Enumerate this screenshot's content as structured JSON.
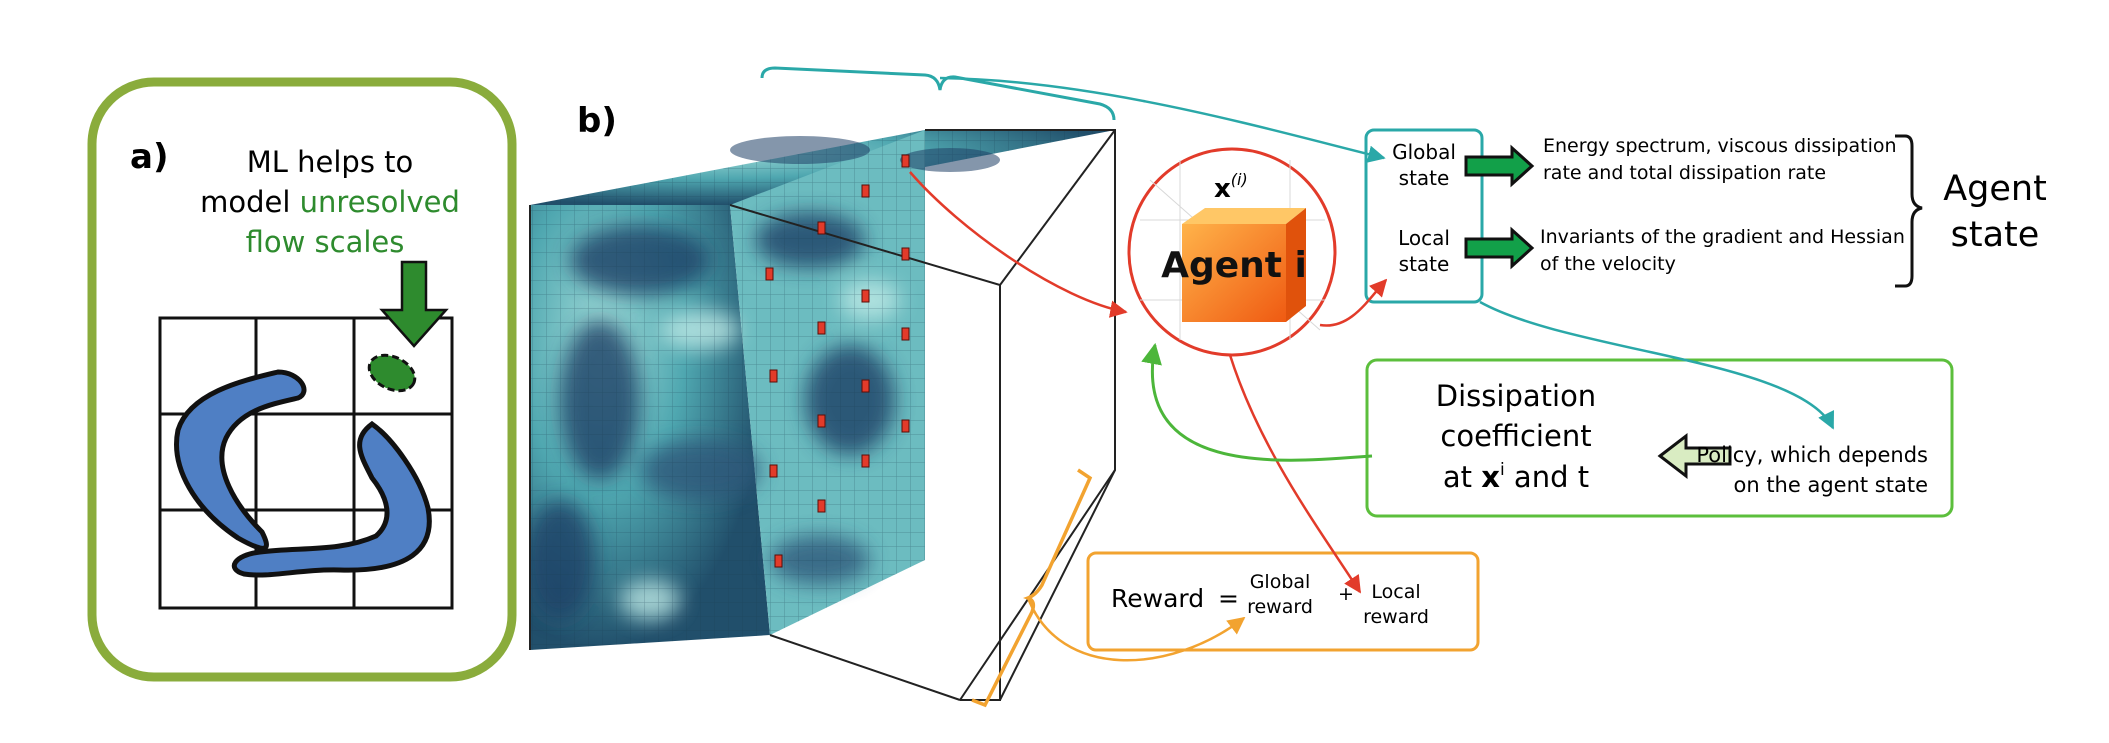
{
  "panel_a": {
    "label": "a)",
    "caption_line1": "ML helps to",
    "caption_line2_prefix": "model ",
    "caption_line2_highlight": "unresolved",
    "caption_line3": "flow scales"
  },
  "panel_b": {
    "label": "b)",
    "agent": {
      "symbol": "x",
      "superscript": "(i)",
      "name": "Agent i"
    },
    "state_box": {
      "global": [
        "Global",
        "state"
      ],
      "local": [
        "Local",
        "state"
      ]
    },
    "global_desc": [
      "Energy spectrum, viscous dissipation",
      "rate and total dissipation rate"
    ],
    "local_desc": [
      "Invariants of the gradient and Hessian",
      "of the velocity"
    ],
    "agent_state": [
      "Agent",
      "state"
    ],
    "dissipation": {
      "line1": "Dissipation",
      "line2": "coefficient",
      "line3_prefix": "at ",
      "line3_bold": "x",
      "line3_sup": "i",
      "line3_suffix": " and t"
    },
    "policy": [
      "Policy, which depends",
      "on the agent state"
    ],
    "reward": {
      "label": "Reward",
      "equals": "=",
      "global": [
        "Global",
        "reward"
      ],
      "plus": "+",
      "local": [
        "Local",
        "reward"
      ]
    }
  },
  "colors": {
    "panel_a_border": "#8aac3c",
    "unresolved_green": "#2e8b2e",
    "vortex_blue": "#4f7fc4",
    "teal": "#2aa8a8",
    "red": "#e23b2a",
    "green_box": "#5cbf3c",
    "orange": "#f2a330",
    "agent_orange": "#f07020",
    "arrow_dark": "#12a049"
  }
}
